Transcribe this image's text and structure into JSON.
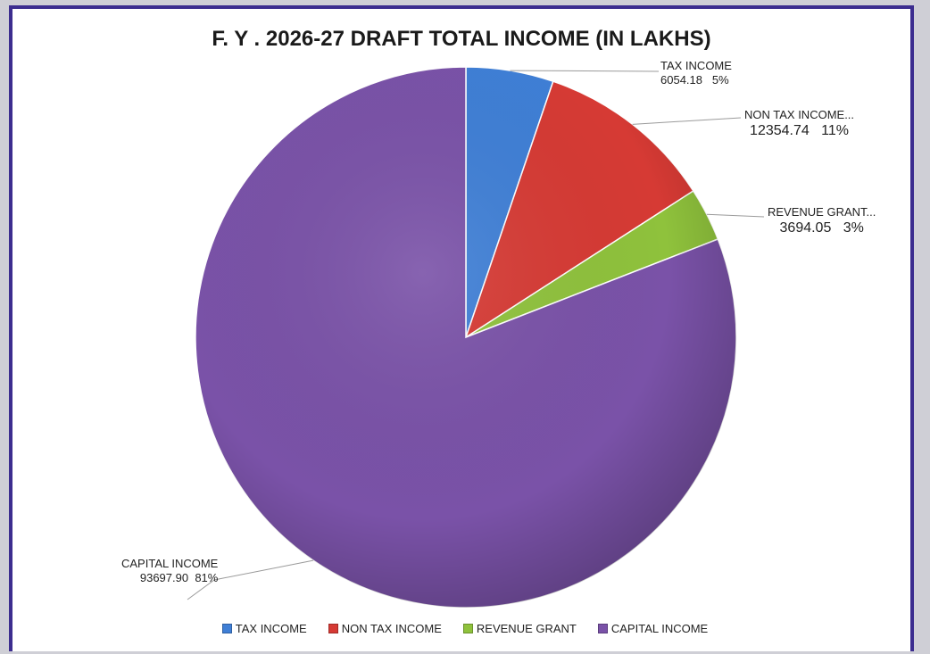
{
  "chart_data": {
    "type": "pie",
    "title": "F. Y . 2026-27 DRAFT TOTAL INCOME (IN LAKHS)",
    "slices": [
      {
        "name": "TAX INCOME",
        "label": "TAX INCOME",
        "value": 6054.18,
        "value_label": "6054.18",
        "percent_label": "5%",
        "color": "#3f7fd6"
      },
      {
        "name": "NON TAX INCOME",
        "label": "NON TAX INCOME...",
        "value": 12354.74,
        "value_label": "12354.74",
        "percent_label": "11%",
        "color": "#d63a34"
      },
      {
        "name": "REVENUE GRANT",
        "label": "REVENUE GRANT...",
        "value": 3694.05,
        "value_label": "3694.05",
        "percent_label": "3%",
        "color": "#8fc23c"
      },
      {
        "name": "CAPITAL INCOME",
        "label": "CAPITAL INCOME",
        "value": 93697.9,
        "value_label": "93697.90",
        "percent_label": "81%",
        "color": "#7a52a8"
      }
    ],
    "legend_position": "bottom"
  }
}
